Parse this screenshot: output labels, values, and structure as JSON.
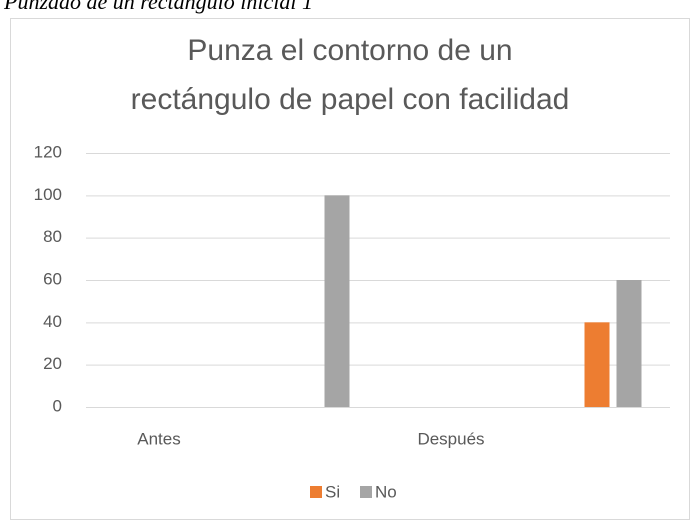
{
  "caption": "Punzado de un rectángulo inicial 1",
  "chart_data": {
    "type": "bar",
    "title": [
      "Punza el contorno de un",
      "rectángulo de papel con facilidad"
    ],
    "categories": [
      "Antes",
      null,
      "Después",
      null
    ],
    "series": [
      {
        "name": "Si",
        "color": "#ed7d31",
        "values": [
          0,
          0,
          0,
          40
        ]
      },
      {
        "name": "No",
        "color": "#a5a5a5",
        "values": [
          0,
          100,
          0,
          60
        ]
      }
    ],
    "ylim": [
      0,
      120
    ],
    "yticks": [
      0,
      20,
      40,
      60,
      80,
      100,
      120
    ],
    "grid": true,
    "legend": "bottom"
  }
}
